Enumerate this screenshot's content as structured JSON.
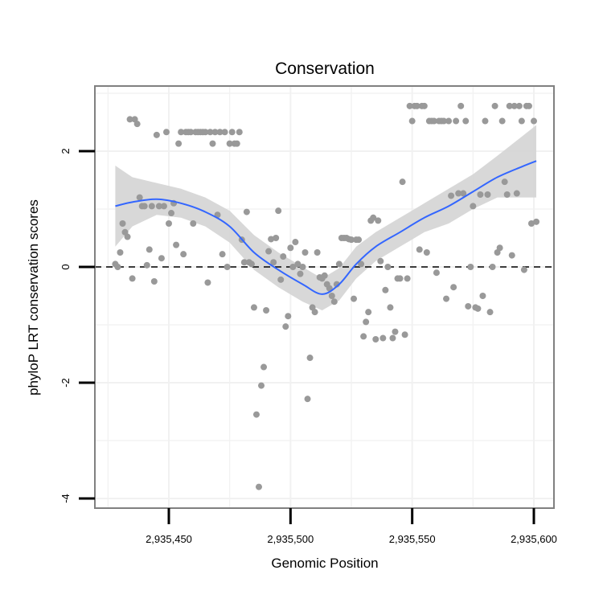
{
  "chart_data": {
    "type": "scatter",
    "title": "Conservation",
    "xlabel": "Genomic Position",
    "ylabel": "phyloP LRT conservation scores",
    "xlim": [
      2935425,
      2935601
    ],
    "ylim": [
      -4.1,
      3.1
    ],
    "x_ticks": [
      {
        "value": 2935450,
        "label": "2,935,450"
      },
      {
        "value": 2935500,
        "label": "2,935,500"
      },
      {
        "value": 2935550,
        "label": "2,935,550"
      },
      {
        "value": 2935600,
        "label": "2,935,600"
      }
    ],
    "y_ticks": [
      {
        "value": 2,
        "label": "2"
      },
      {
        "value": 0,
        "label": "0"
      },
      {
        "value": -2,
        "label": "-2"
      },
      {
        "value": -4,
        "label": "-4"
      }
    ],
    "reference_line": {
      "y": 0,
      "style": "dashed"
    },
    "colors": {
      "points": "#999999",
      "smooth_line": "#3366ff",
      "confidence_band": "#d4d4d4",
      "grid": "#f1f1f1",
      "border": "#808080",
      "axis": "#000000"
    },
    "points": [
      [
        2935428,
        0.05
      ],
      [
        2935429,
        0.0
      ],
      [
        2935430,
        0.25
      ],
      [
        2935431,
        0.75
      ],
      [
        2935432,
        0.6
      ],
      [
        2935433,
        0.52
      ],
      [
        2935434,
        2.55
      ],
      [
        2935435,
        -0.2
      ],
      [
        2935436,
        2.55
      ],
      [
        2935437,
        2.47
      ],
      [
        2935438,
        1.2
      ],
      [
        2935439,
        1.05
      ],
      [
        2935440,
        1.05
      ],
      [
        2935441,
        0.03
      ],
      [
        2935442,
        0.3
      ],
      [
        2935443,
        1.05
      ],
      [
        2935444,
        -0.25
      ],
      [
        2935445,
        2.28
      ],
      [
        2935446,
        1.05
      ],
      [
        2935447,
        0.15
      ],
      [
        2935448,
        1.05
      ],
      [
        2935449,
        2.33
      ],
      [
        2935450,
        0.75
      ],
      [
        2935451,
        0.93
      ],
      [
        2935452,
        1.1
      ],
      [
        2935453,
        0.38
      ],
      [
        2935454,
        2.13
      ],
      [
        2935455,
        2.33
      ],
      [
        2935456,
        0.22
      ],
      [
        2935457,
        2.33
      ],
      [
        2935458,
        2.33
      ],
      [
        2935459,
        2.33
      ],
      [
        2935460,
        0.75
      ],
      [
        2935461,
        2.33
      ],
      [
        2935462,
        2.33
      ],
      [
        2935463,
        2.33
      ],
      [
        2935464,
        2.33
      ],
      [
        2935465,
        2.33
      ],
      [
        2935466,
        -0.27
      ],
      [
        2935467,
        2.33
      ],
      [
        2935468,
        2.13
      ],
      [
        2935469,
        2.33
      ],
      [
        2935470,
        0.9
      ],
      [
        2935471,
        2.33
      ],
      [
        2935472,
        0.22
      ],
      [
        2935473,
        2.33
      ],
      [
        2935474,
        0.0
      ],
      [
        2935475,
        2.13
      ],
      [
        2935476,
        2.33
      ],
      [
        2935477,
        2.13
      ],
      [
        2935478,
        2.13
      ],
      [
        2935479,
        2.33
      ],
      [
        2935480,
        0.47
      ],
      [
        2935481,
        0.08
      ],
      [
        2935482,
        0.95
      ],
      [
        2935483,
        0.08
      ],
      [
        2935484,
        0.05
      ],
      [
        2935485,
        -0.7
      ],
      [
        2935486,
        -2.55
      ],
      [
        2935487,
        -3.8
      ],
      [
        2935488,
        -2.05
      ],
      [
        2935489,
        -1.73
      ],
      [
        2935490,
        -0.75
      ],
      [
        2935491,
        0.27
      ],
      [
        2935492,
        0.48
      ],
      [
        2935493,
        0.08
      ],
      [
        2935494,
        0.5
      ],
      [
        2935495,
        0.97
      ],
      [
        2935496,
        -0.22
      ],
      [
        2935497,
        0.18
      ],
      [
        2935498,
        -1.03
      ],
      [
        2935499,
        -0.85
      ],
      [
        2935500,
        0.33
      ],
      [
        2935501,
        0.0
      ],
      [
        2935502,
        0.43
      ],
      [
        2935503,
        0.05
      ],
      [
        2935504,
        -0.12
      ],
      [
        2935505,
        0.0
      ],
      [
        2935506,
        0.25
      ],
      [
        2935507,
        -2.28
      ],
      [
        2935508,
        -1.57
      ],
      [
        2935509,
        -0.7
      ],
      [
        2935510,
        -0.78
      ],
      [
        2935511,
        0.25
      ],
      [
        2935512,
        -0.18
      ],
      [
        2935513,
        -0.2
      ],
      [
        2935514,
        -0.15
      ],
      [
        2935515,
        -0.3
      ],
      [
        2935516,
        -0.37
      ],
      [
        2935517,
        -0.5
      ],
      [
        2935518,
        -0.6
      ],
      [
        2935519,
        -0.3
      ],
      [
        2935520,
        0.05
      ],
      [
        2935521,
        0.5
      ],
      [
        2935522,
        0.5
      ],
      [
        2935523,
        0.5
      ],
      [
        2935524,
        0.48
      ],
      [
        2935525,
        0.47
      ],
      [
        2935526,
        -0.55
      ],
      [
        2935527,
        0.47
      ],
      [
        2935528,
        0.47
      ],
      [
        2935529,
        0.05
      ],
      [
        2935530,
        -1.2
      ],
      [
        2935531,
        -0.95
      ],
      [
        2935532,
        -0.78
      ],
      [
        2935533,
        0.8
      ],
      [
        2935534,
        0.85
      ],
      [
        2935535,
        -1.25
      ],
      [
        2935536,
        0.8
      ],
      [
        2935537,
        0.1
      ],
      [
        2935538,
        -1.23
      ],
      [
        2935539,
        -0.4
      ],
      [
        2935540,
        0.0
      ],
      [
        2935541,
        -0.7
      ],
      [
        2935542,
        -1.23
      ],
      [
        2935543,
        -1.12
      ],
      [
        2935544,
        -0.2
      ],
      [
        2935545,
        -0.2
      ],
      [
        2935546,
        1.47
      ],
      [
        2935547,
        -1.17
      ],
      [
        2935548,
        -0.2
      ],
      [
        2935549,
        2.78
      ],
      [
        2935550,
        2.52
      ],
      [
        2935551,
        2.78
      ],
      [
        2935552,
        2.78
      ],
      [
        2935553,
        0.3
      ],
      [
        2935554,
        2.78
      ],
      [
        2935555,
        2.78
      ],
      [
        2935556,
        0.25
      ],
      [
        2935557,
        2.52
      ],
      [
        2935558,
        2.52
      ],
      [
        2935559,
        2.52
      ],
      [
        2935560,
        -0.1
      ],
      [
        2935561,
        2.52
      ],
      [
        2935562,
        2.52
      ],
      [
        2935563,
        2.52
      ],
      [
        2935564,
        -0.55
      ],
      [
        2935565,
        2.52
      ],
      [
        2935566,
        1.23
      ],
      [
        2935567,
        -0.35
      ],
      [
        2935568,
        2.52
      ],
      [
        2935569,
        1.27
      ],
      [
        2935570,
        2.78
      ],
      [
        2935571,
        1.27
      ],
      [
        2935572,
        2.52
      ],
      [
        2935573,
        -0.68
      ],
      [
        2935574,
        0.0
      ],
      [
        2935575,
        1.05
      ],
      [
        2935576,
        -0.7
      ],
      [
        2935577,
        -0.72
      ],
      [
        2935578,
        1.25
      ],
      [
        2935579,
        -0.5
      ],
      [
        2935580,
        2.52
      ],
      [
        2935581,
        1.25
      ],
      [
        2935582,
        -0.78
      ],
      [
        2935583,
        0.0
      ],
      [
        2935584,
        2.78
      ],
      [
        2935585,
        0.25
      ],
      [
        2935586,
        0.33
      ],
      [
        2935587,
        2.52
      ],
      [
        2935588,
        1.47
      ],
      [
        2935589,
        1.25
      ],
      [
        2935590,
        2.78
      ],
      [
        2935591,
        0.2
      ],
      [
        2935592,
        2.78
      ],
      [
        2935593,
        1.27
      ],
      [
        2935594,
        2.78
      ],
      [
        2935595,
        2.52
      ],
      [
        2935596,
        -0.05
      ],
      [
        2935597,
        2.78
      ],
      [
        2935598,
        2.78
      ],
      [
        2935599,
        0.75
      ],
      [
        2935600,
        2.52
      ],
      [
        2935601,
        0.78
      ]
    ],
    "smooth": [
      [
        2935428,
        1.05
      ],
      [
        2935435,
        1.12
      ],
      [
        2935445,
        1.17
      ],
      [
        2935455,
        1.1
      ],
      [
        2935465,
        0.95
      ],
      [
        2935475,
        0.7
      ],
      [
        2935485,
        0.25
      ],
      [
        2935495,
        -0.05
      ],
      [
        2935505,
        -0.3
      ],
      [
        2935513,
        -0.47
      ],
      [
        2935520,
        -0.3
      ],
      [
        2935527,
        0.05
      ],
      [
        2935535,
        0.35
      ],
      [
        2935545,
        0.6
      ],
      [
        2935555,
        0.85
      ],
      [
        2935565,
        1.05
      ],
      [
        2935575,
        1.3
      ],
      [
        2935585,
        1.55
      ],
      [
        2935595,
        1.73
      ],
      [
        2935601,
        1.83
      ]
    ],
    "band_upper": [
      [
        2935428,
        1.75
      ],
      [
        2935435,
        1.55
      ],
      [
        2935445,
        1.45
      ],
      [
        2935455,
        1.35
      ],
      [
        2935465,
        1.2
      ],
      [
        2935475,
        0.97
      ],
      [
        2935485,
        0.55
      ],
      [
        2935495,
        0.25
      ],
      [
        2935505,
        0.0
      ],
      [
        2935513,
        -0.2
      ],
      [
        2935520,
        -0.02
      ],
      [
        2935527,
        0.35
      ],
      [
        2935535,
        0.6
      ],
      [
        2935545,
        0.85
      ],
      [
        2935555,
        1.1
      ],
      [
        2935565,
        1.35
      ],
      [
        2935575,
        1.6
      ],
      [
        2935585,
        1.92
      ],
      [
        2935595,
        2.25
      ],
      [
        2935601,
        2.45
      ]
    ],
    "band_lower": [
      [
        2935428,
        0.35
      ],
      [
        2935435,
        0.7
      ],
      [
        2935445,
        0.9
      ],
      [
        2935455,
        0.85
      ],
      [
        2935465,
        0.7
      ],
      [
        2935475,
        0.42
      ],
      [
        2935485,
        -0.05
      ],
      [
        2935495,
        -0.35
      ],
      [
        2935505,
        -0.6
      ],
      [
        2935513,
        -0.75
      ],
      [
        2935520,
        -0.58
      ],
      [
        2935527,
        -0.2
      ],
      [
        2935535,
        0.1
      ],
      [
        2935545,
        0.35
      ],
      [
        2935555,
        0.6
      ],
      [
        2935565,
        0.75
      ],
      [
        2935575,
        1.0
      ],
      [
        2935585,
        1.2
      ],
      [
        2935595,
        1.2
      ],
      [
        2935601,
        1.2
      ]
    ]
  }
}
